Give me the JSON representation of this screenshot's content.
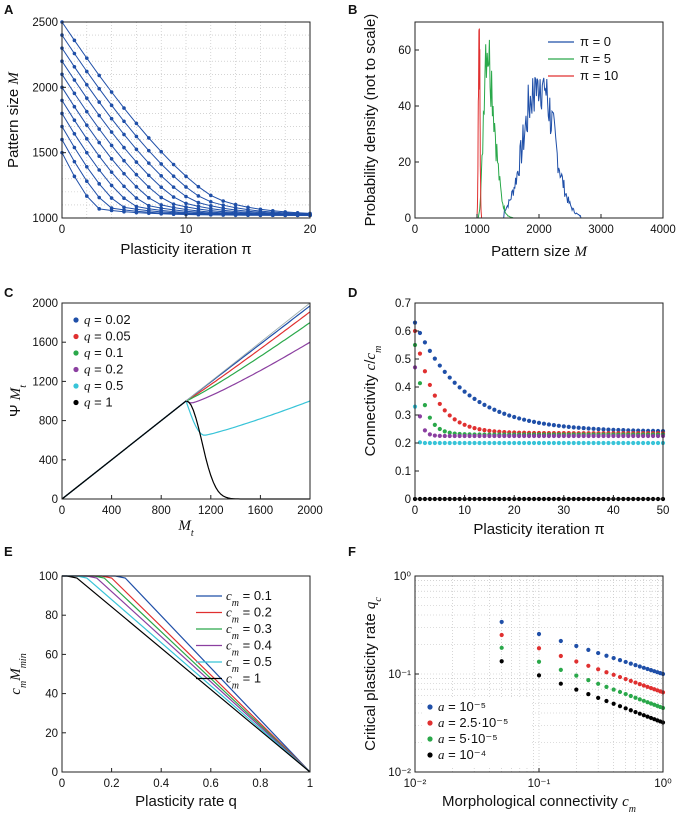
{
  "colors": {
    "blue": "#1f4fa8",
    "green": "#2aa84a",
    "red": "#e03030",
    "purple": "#8b3fa0",
    "cyan": "#38c4d8",
    "black": "#000000"
  },
  "chart_data": [
    {
      "panel": "A",
      "type": "line",
      "xlabel": "Plasticity iteration π",
      "ylabel": "Pattern size M",
      "xlim": [
        0,
        20
      ],
      "ylim": [
        1000,
        2500
      ],
      "xticks": [
        0,
        10,
        20
      ],
      "xtick_labels": [
        "0",
        "10",
        "20"
      ],
      "yticks": [
        1000,
        1500,
        2000,
        2500
      ],
      "ytick_labels": [
        "1000",
        "1500",
        "2000",
        "2500"
      ],
      "series_start_values": [
        2500,
        2400,
        2300,
        2200,
        2100,
        2000,
        1900,
        1800,
        1700,
        1600,
        1500
      ],
      "series_descent_iterations": [
        13,
        12,
        11,
        10,
        9,
        8,
        7,
        6,
        5,
        4,
        3
      ],
      "final_value": 1020
    },
    {
      "panel": "B",
      "type": "line",
      "xlabel": "Pattern size M",
      "ylabel": "Probability density (not to scale)",
      "xlim": [
        0,
        4000
      ],
      "ylim": [
        0,
        70
      ],
      "xticks": [
        0,
        1000,
        2000,
        3000,
        4000
      ],
      "xtick_labels": [
        "0",
        "1000",
        "2000",
        "3000",
        "4000"
      ],
      "yticks": [
        0,
        20,
        40,
        60
      ],
      "ytick_labels": [
        "0",
        "20",
        "40",
        "60"
      ],
      "series": [
        {
          "name": "π = 0",
          "color": "blue",
          "center": 2000,
          "width": 230,
          "peak": 51,
          "start": 1430,
          "end": 2680
        },
        {
          "name": "π = 5",
          "color": "green",
          "center": 1150,
          "width": 120,
          "peak": 64,
          "start": 1020,
          "end": 1600
        },
        {
          "name": "π = 10",
          "color": "red",
          "center": 1035,
          "width": 12,
          "peak": 69,
          "start": 1000,
          "end": 1075
        }
      ]
    },
    {
      "panel": "C",
      "type": "line",
      "xlabel": "M_t",
      "ylabel": "Ψ M_t",
      "xlim": [
        0,
        2000
      ],
      "ylim": [
        0,
        2000
      ],
      "xticks": [
        0,
        400,
        800,
        1200,
        1600,
        2000
      ],
      "xtick_labels": [
        "0",
        "400",
        "800",
        "1200",
        "1600",
        "2000"
      ],
      "yticks": [
        0,
        400,
        800,
        1200,
        1600,
        2000
      ],
      "ytick_labels": [
        "0",
        "400",
        "800",
        "1200",
        "1600",
        "2000"
      ],
      "series": [
        {
          "name": "q = 0.02",
          "color": "blue",
          "end": 1970
        },
        {
          "name": "q = 0.05",
          "color": "red",
          "end": 1910
        },
        {
          "name": "q = 0.1",
          "color": "green",
          "end": 1800
        },
        {
          "name": "q = 0.2",
          "color": "purple",
          "end": 1600,
          "min": 980
        },
        {
          "name": "q = 0.5",
          "color": "cyan",
          "end": 1000,
          "min": 650
        },
        {
          "name": "q = 1",
          "color": "black",
          "end": 0
        }
      ]
    },
    {
      "panel": "D",
      "type": "scatter",
      "xlabel": "Plasticity iteration π",
      "ylabel": "Connectivity c/c_m",
      "xlim": [
        0,
        50
      ],
      "ylim": [
        0,
        0.7
      ],
      "xticks": [
        0,
        10,
        20,
        30,
        40,
        50
      ],
      "xtick_labels": [
        "0",
        "10",
        "20",
        "30",
        "40",
        "50"
      ],
      "yticks": [
        0,
        0.1,
        0.2,
        0.3,
        0.4,
        0.5,
        0.6,
        0.7
      ],
      "ytick_labels": [
        "0",
        "0.1",
        "0.2",
        "0.3",
        "0.4",
        "0.5",
        "0.6",
        "0.7"
      ],
      "series": [
        {
          "color": "blue",
          "start": 0.63,
          "end": 0.24,
          "tau": 10
        },
        {
          "color": "red",
          "start": 0.6,
          "end": 0.235,
          "tau": 4
        },
        {
          "color": "green",
          "start": 0.55,
          "end": 0.23,
          "tau": 1.8
        },
        {
          "color": "purple",
          "start": 0.47,
          "end": 0.225,
          "tau": 0.8
        },
        {
          "color": "cyan",
          "start": 0.33,
          "end": 0.2,
          "tau": 0.25
        },
        {
          "color": "black",
          "start": 0.0,
          "end": 0.0,
          "tau": 1
        }
      ]
    },
    {
      "panel": "E",
      "type": "line",
      "xlabel": "Plasticity rate q",
      "ylabel": "c_m M_min",
      "xlim": [
        0,
        1
      ],
      "ylim": [
        0,
        100
      ],
      "xticks": [
        0,
        0.2,
        0.4,
        0.6,
        0.8,
        1
      ],
      "xtick_labels": [
        "0",
        "0.2",
        "0.4",
        "0.6",
        "0.8",
        "1"
      ],
      "yticks": [
        0,
        20,
        40,
        60,
        80,
        100
      ],
      "ytick_labels": [
        "0",
        "20",
        "40",
        "60",
        "80",
        "100"
      ],
      "series": [
        {
          "name": "c_m = 0.1",
          "color": "blue",
          "knee": 0.245
        },
        {
          "name": "c_m = 0.2",
          "color": "red",
          "knee": 0.19
        },
        {
          "name": "c_m = 0.3",
          "color": "green",
          "knee": 0.16
        },
        {
          "name": "c_m = 0.4",
          "color": "purple",
          "knee": 0.13
        },
        {
          "name": "c_m = 0.5",
          "color": "cyan",
          "knee": 0.09
        },
        {
          "name": "c_m = 1",
          "color": "black",
          "knee": 0.05
        }
      ]
    },
    {
      "panel": "F",
      "type": "scatter",
      "scale": "log-log",
      "xlabel": "Morphological connectivity c_m",
      "ylabel": "Critical plasticity rate q_c",
      "xlim": [
        0.01,
        1
      ],
      "ylim": [
        0.01,
        1
      ],
      "xtick_labels": [
        "10⁻²",
        "10⁻¹",
        "10⁰"
      ],
      "ytick_labels": [
        "10⁻²",
        "10⁻¹",
        "10⁰"
      ],
      "x_points": [
        0.05,
        0.1,
        0.15,
        0.2,
        0.25,
        0.3,
        0.35,
        0.4,
        0.45,
        0.5,
        0.55,
        0.6,
        0.65,
        0.7,
        0.75,
        0.8,
        0.85,
        0.9,
        0.95,
        1.0
      ],
      "series": [
        {
          "name": "a = 10⁻⁵",
          "color": "blue",
          "q_at_1": 0.1,
          "q_at_005": 0.34
        },
        {
          "name": "a = 2.5·10⁻⁵",
          "color": "red",
          "q_at_1": 0.065,
          "q_at_005": 0.25
        },
        {
          "name": "a = 5·10⁻⁵",
          "color": "green",
          "q_at_1": 0.045,
          "q_at_005": 0.185
        },
        {
          "name": "a = 10⁻⁴",
          "color": "black",
          "q_at_1": 0.032,
          "q_at_005": 0.135
        }
      ]
    }
  ],
  "panel_labels": [
    "A",
    "B",
    "C",
    "D",
    "E",
    "F"
  ]
}
